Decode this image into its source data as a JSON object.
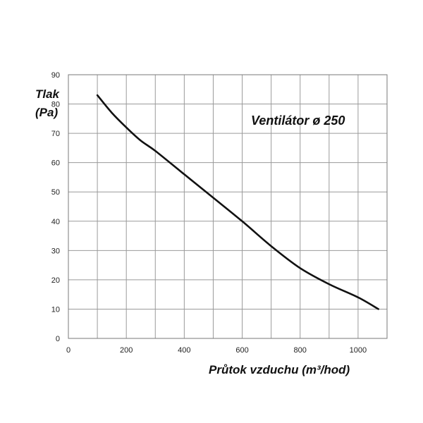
{
  "chart_data": {
    "type": "line",
    "title": "",
    "annotation": "Ventilátor ø 250",
    "xlabel": "Průtok vzduchu (m³/hod)",
    "ylabel_line1": "Tlak",
    "ylabel_line2": "(Pa)",
    "xlim": [
      0,
      1100
    ],
    "ylim": [
      0,
      90
    ],
    "x_ticks": [
      0,
      200,
      400,
      600,
      800,
      1000
    ],
    "x_tick_labels": [
      "0",
      "200",
      "400",
      "600",
      "800",
      "1000"
    ],
    "x_grid_step": 100,
    "y_ticks": [
      0,
      10,
      20,
      30,
      40,
      50,
      60,
      70,
      80,
      90
    ],
    "y_tick_labels": [
      "0",
      "10",
      "20",
      "30",
      "40",
      "50",
      "60",
      "70",
      "80",
      "90"
    ],
    "grid": true,
    "legend": "none",
    "line_color": "#111111",
    "grid_color": "#9a9a9a",
    "series": [
      {
        "x": [
          100,
          150,
          200,
          250,
          300,
          400,
          500,
          600,
          700,
          800,
          900,
          1000,
          1070
        ],
        "y": [
          83,
          77,
          72,
          67.5,
          64,
          56,
          48,
          40,
          31.5,
          24,
          18.5,
          14,
          10
        ]
      }
    ]
  }
}
